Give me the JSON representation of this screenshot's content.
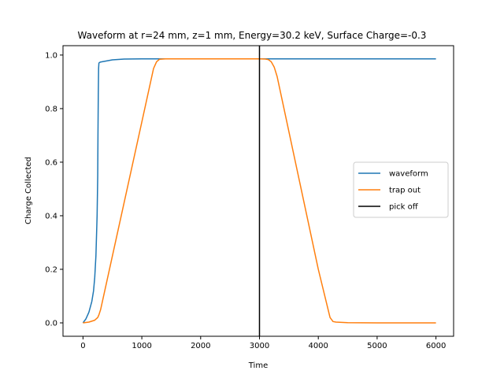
{
  "chart_data": {
    "type": "line",
    "title": "Waveform at r=24 mm, z=1 mm, Energy=30.2 keV, Surface Charge=-0.3",
    "xlabel": "Time",
    "ylabel": "Charge Collected",
    "xlim": [
      -340,
      6300
    ],
    "ylim": [
      -0.05,
      1.035
    ],
    "xticks": [
      0,
      1000,
      2000,
      3000,
      4000,
      5000,
      6000
    ],
    "xtick_labels": [
      "0",
      "1000",
      "2000",
      "3000",
      "4000",
      "5000",
      "6000"
    ],
    "yticks": [
      0.0,
      0.2,
      0.4,
      0.6,
      0.8,
      1.0
    ],
    "ytick_labels": [
      "0.0",
      "0.2",
      "0.4",
      "0.6",
      "0.8",
      "1.0"
    ],
    "grid": false,
    "legend_position": "center-right",
    "series": [
      {
        "name": "waveform",
        "color": "#1f77b4",
        "x": [
          0,
          50,
          100,
          150,
          180,
          200,
          220,
          240,
          250,
          255,
          260,
          265,
          270,
          280,
          300,
          400,
          500,
          700,
          1000,
          1500,
          2000,
          3000,
          4000,
          5000,
          6000
        ],
        "y": [
          0.0,
          0.015,
          0.04,
          0.08,
          0.12,
          0.17,
          0.25,
          0.4,
          0.55,
          0.7,
          0.85,
          0.95,
          0.97,
          0.972,
          0.974,
          0.978,
          0.982,
          0.985,
          0.986,
          0.986,
          0.986,
          0.986,
          0.986,
          0.986,
          0.986
        ]
      },
      {
        "name": "trap out",
        "color": "#ff7f0e",
        "x": [
          0,
          100,
          200,
          250,
          270,
          300,
          1000,
          1200,
          1250,
          1300,
          1400,
          3000,
          3100,
          3150,
          3200,
          3250,
          3300,
          4000,
          4200,
          4250,
          4300,
          4500,
          5000,
          6000
        ],
        "y": [
          0.0,
          0.003,
          0.01,
          0.02,
          0.03,
          0.05,
          0.75,
          0.95,
          0.975,
          0.984,
          0.986,
          0.986,
          0.985,
          0.983,
          0.975,
          0.955,
          0.92,
          0.2,
          0.02,
          0.005,
          0.003,
          0.001,
          0.0,
          0.0
        ]
      },
      {
        "name": "pick off",
        "color": "#000000",
        "vertical_line_x": 3000
      }
    ]
  }
}
